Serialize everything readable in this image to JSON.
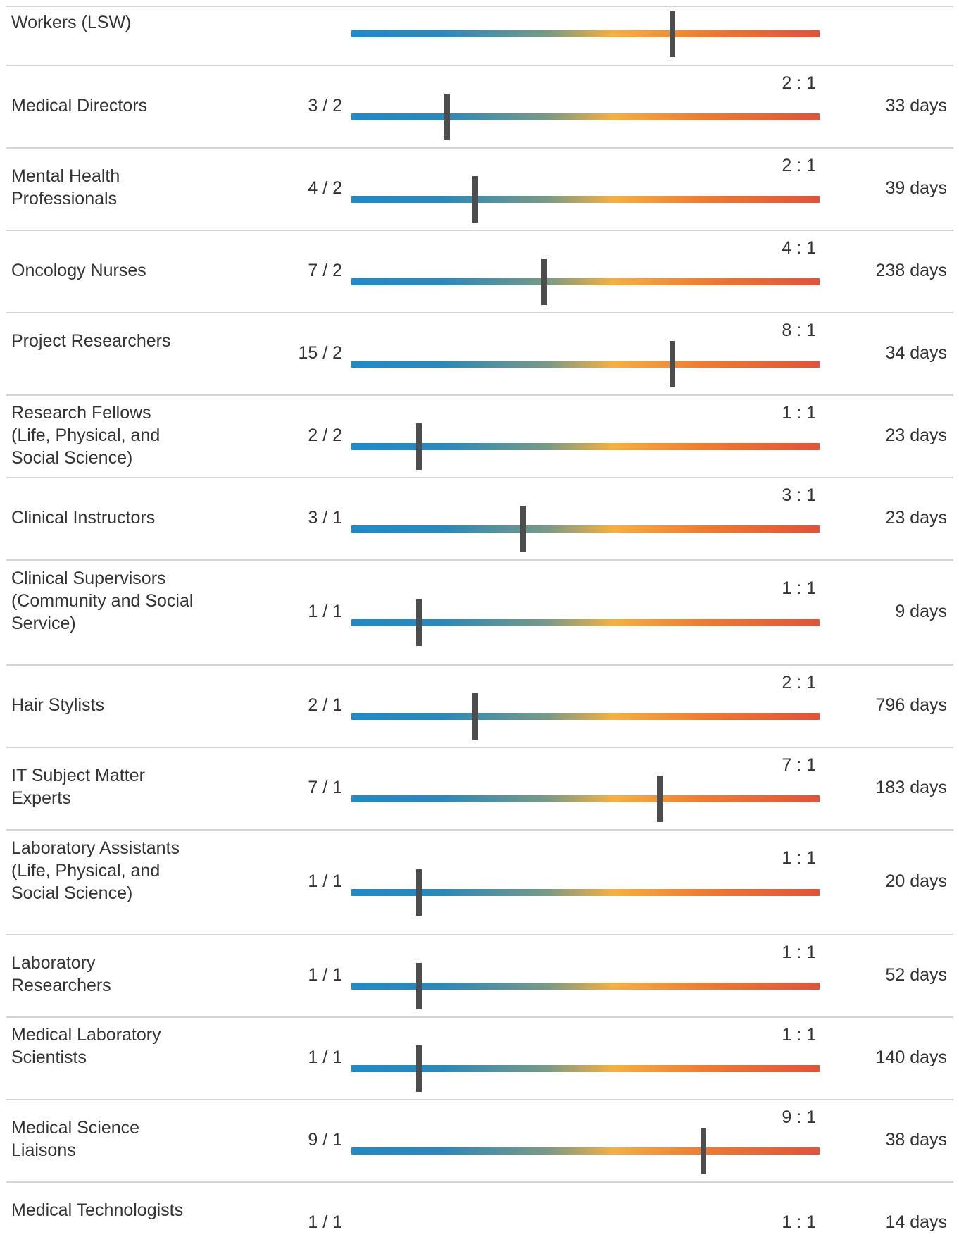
{
  "colors": {
    "gradient_start": "#1f8ac8",
    "gradient_mid": "#f5b041",
    "gradient_end": "#e0533a",
    "marker": "#4d4d4d",
    "divider": "#d4d4d4",
    "text": "#333333"
  },
  "rows": [
    {
      "occupation": "Workers (LSW)",
      "counts": "",
      "ratio": "",
      "days": "",
      "level": 0.685
    },
    {
      "occupation": "Medical Directors",
      "counts": "3 / 2",
      "ratio": "2 : 1",
      "days": "33 days",
      "level": 0.205
    },
    {
      "occupation": "Mental Health Professionals",
      "counts": "4 / 2",
      "ratio": "2 : 1",
      "days": "39 days",
      "level": 0.265
    },
    {
      "occupation": "Oncology Nurses",
      "counts": "7 / 2",
      "ratio": "4 : 1",
      "days": "238 days",
      "level": 0.412
    },
    {
      "occupation": "Project Researchers",
      "counts": "15 / 2",
      "ratio": "8 : 1",
      "days": "34 days",
      "level": 0.685
    },
    {
      "occupation": "Research Fellows (Life, Physical, and Social Science)",
      "counts": "2 / 2",
      "ratio": "1 : 1",
      "days": "23 days",
      "level": 0.145
    },
    {
      "occupation": "Clinical Instructors",
      "counts": "3 / 1",
      "ratio": "3 : 1",
      "days": "23 days",
      "level": 0.367
    },
    {
      "occupation": "Clinical Supervisors (Community and Social Service)",
      "counts": "1 / 1",
      "ratio": "1 : 1",
      "days": "9 days",
      "level": 0.145
    },
    {
      "occupation": "Hair Stylists",
      "counts": "2 / 1",
      "ratio": "2 : 1",
      "days": "796 days",
      "level": 0.265
    },
    {
      "occupation": "IT Subject Matter Experts",
      "counts": "7 / 1",
      "ratio": "7 : 1",
      "days": "183 days",
      "level": 0.658
    },
    {
      "occupation": "Laboratory Assistants (Life, Physical, and Social Science)",
      "counts": "1 / 1",
      "ratio": "1 : 1",
      "days": "20 days",
      "level": 0.145
    },
    {
      "occupation": "Laboratory Researchers",
      "counts": "1 / 1",
      "ratio": "1 : 1",
      "days": "52 days",
      "level": 0.145
    },
    {
      "occupation": "Medical Laboratory Scientists",
      "counts": "1 / 1",
      "ratio": "1 : 1",
      "days": "140 days",
      "level": 0.145
    },
    {
      "occupation": "Medical Science Liaisons",
      "counts": "9 / 1",
      "ratio": "9 : 1",
      "days": "38 days",
      "level": 0.752
    },
    {
      "occupation": "Medical Technologists",
      "counts": "1 / 1",
      "ratio": "1 : 1",
      "days": "14 days",
      "level": null
    }
  ]
}
